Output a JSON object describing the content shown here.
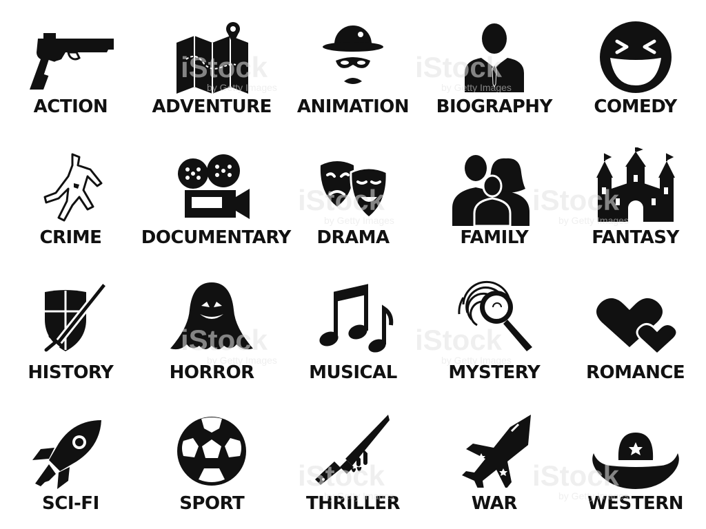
{
  "colors": {
    "icon": "#111111",
    "background": "#ffffff",
    "watermark": "#d8d8d8"
  },
  "genres": [
    {
      "label": "ACTION",
      "icon": "pistol-icon"
    },
    {
      "label": "ADVENTURE",
      "icon": "treasure-map-icon"
    },
    {
      "label": "ANIMATION",
      "icon": "masked-character-icon"
    },
    {
      "label": "BIOGRAPHY",
      "icon": "businessman-icon"
    },
    {
      "label": "COMEDY",
      "icon": "laughing-face-icon"
    },
    {
      "label": "CRIME",
      "icon": "chalk-outline-icon"
    },
    {
      "label": "DOCUMENTARY",
      "icon": "film-projector-icon"
    },
    {
      "label": "DRAMA",
      "icon": "theater-masks-icon"
    },
    {
      "label": "FAMILY",
      "icon": "family-icon"
    },
    {
      "label": "FANTASY",
      "icon": "castle-icon"
    },
    {
      "label": "HISTORY",
      "icon": "shield-sword-icon"
    },
    {
      "label": "HORROR",
      "icon": "ghost-icon"
    },
    {
      "label": "MUSICAL",
      "icon": "music-notes-icon"
    },
    {
      "label": "MYSTERY",
      "icon": "fingerprint-magnifier-icon"
    },
    {
      "label": "ROMANCE",
      "icon": "hearts-icon"
    },
    {
      "label": "SCI-FI",
      "icon": "rocket-icon"
    },
    {
      "label": "SPORT",
      "icon": "soccer-ball-icon"
    },
    {
      "label": "THRILLER",
      "icon": "bloody-knife-icon"
    },
    {
      "label": "WAR",
      "icon": "fighter-jet-icon"
    },
    {
      "label": "WESTERN",
      "icon": "cowboy-hat-icon"
    }
  ],
  "watermark": {
    "brand": "iStock",
    "byline": "by Getty Images"
  }
}
